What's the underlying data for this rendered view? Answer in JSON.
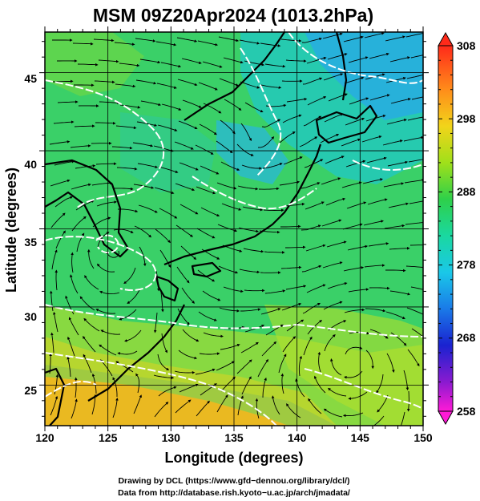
{
  "title": "MSM 09Z20Apr2024 (1013.2hPa)",
  "axes": {
    "x_label": "Longitude (degrees)",
    "y_label": "Latitude  (degrees)",
    "x_ticks": [
      "120",
      "125",
      "130",
      "135",
      "140",
      "145",
      "150"
    ],
    "y_ticks": [
      "25",
      "30",
      "35",
      "40",
      "45"
    ]
  },
  "colorbar": {
    "labels": [
      "308",
      "298",
      "288",
      "278",
      "268",
      "258"
    ],
    "min": 258,
    "max": 308
  },
  "credits": {
    "line1": "Drawing by DCL (https://www.gfd−dennou.org/library/dcl/)",
    "line2": "Data from http://database.rish.kyoto−u.ac.jp/arch/jmadata/"
  },
  "chart_data": {
    "type": "heatmap",
    "title": "MSM 09Z20Apr2024 (1013.2hPa)",
    "xlabel": "Longitude (degrees)",
    "ylabel": "Latitude  (degrees)",
    "xlim": [
      120,
      150
    ],
    "ylim": [
      22.4,
      47.6
    ],
    "x_ticks": [
      120,
      125,
      130,
      135,
      140,
      145,
      150
    ],
    "y_ticks": [
      25,
      30,
      35,
      40,
      45
    ],
    "colorbar_range": [
      258,
      308
    ],
    "colorbar_ticks": [
      308,
      298,
      288,
      278,
      268,
      258
    ],
    "grid": true,
    "overlay": "streamlines"
  }
}
